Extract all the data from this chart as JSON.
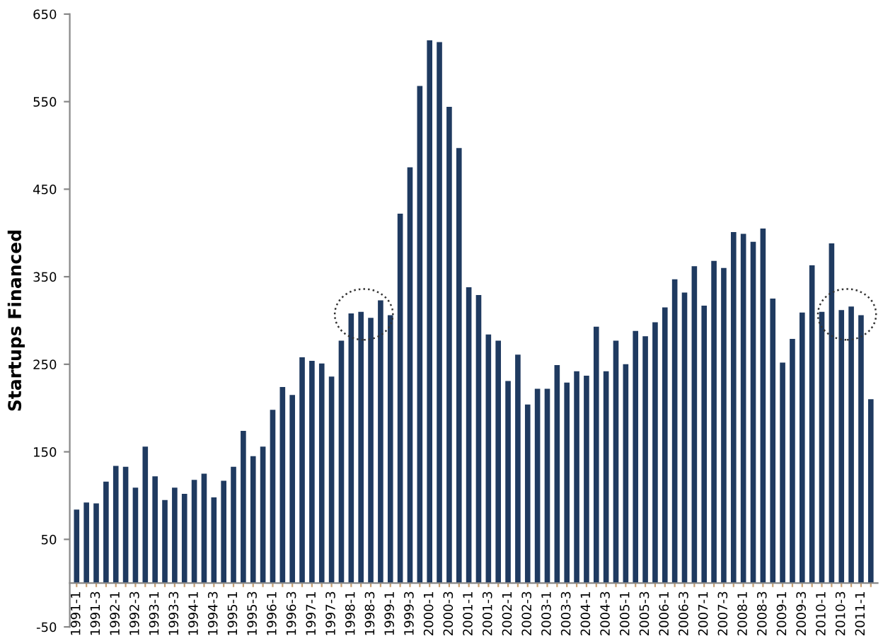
{
  "chart_data": {
    "type": "bar",
    "ylabel": "Startups Financed",
    "categories": [
      "1991-1",
      null,
      "1991-3",
      null,
      "1992-1",
      null,
      "1992-3",
      null,
      "1993-1",
      null,
      "1993-3",
      null,
      "1994-1",
      null,
      "1994-3",
      null,
      "1995-1",
      null,
      "1995-3",
      null,
      "1996-1",
      null,
      "1996-3",
      null,
      "1997-1",
      null,
      "1997-3",
      null,
      "1998-1",
      null,
      "1998-3",
      null,
      "1999-1",
      null,
      "1999-3",
      null,
      "2000-1",
      null,
      "2000-3",
      null,
      "2001-1",
      null,
      "2001-3",
      null,
      "2002-1",
      null,
      "2002-3",
      null,
      "2003-1",
      null,
      "2003-3",
      null,
      "2004-1",
      null,
      "2004-3",
      null,
      "2005-1",
      null,
      "2005-3",
      null,
      "2006-1",
      null,
      "2006-3",
      null,
      "2007-1",
      null,
      "2007-3",
      null,
      "2008-1",
      null,
      "2008-3",
      null,
      "2009-1",
      null,
      "2009-3",
      null,
      "2010-1",
      null,
      "2010-3",
      null,
      "2011-1",
      null
    ],
    "values": [
      84,
      92,
      91,
      116,
      134,
      133,
      109,
      156,
      122,
      95,
      109,
      102,
      118,
      125,
      98,
      117,
      133,
      174,
      145,
      156,
      198,
      224,
      215,
      258,
      254,
      251,
      236,
      277,
      308,
      310,
      303,
      323,
      306,
      422,
      475,
      568,
      620,
      618,
      544,
      497,
      338,
      329,
      284,
      277,
      231,
      261,
      204,
      222,
      222,
      249,
      229,
      242,
      237,
      293,
      242,
      277,
      250,
      288,
      282,
      298,
      315,
      347,
      332,
      362,
      317,
      368,
      360,
      401,
      399,
      390,
      405,
      325,
      252,
      279,
      309,
      363,
      310,
      388,
      312,
      316,
      306,
      210
    ],
    "color": "#1f3a60",
    "ylim": [
      -50,
      650
    ],
    "yticks": [
      -50,
      50,
      150,
      250,
      350,
      450,
      550,
      650
    ],
    "grid": false,
    "legend": false
  }
}
